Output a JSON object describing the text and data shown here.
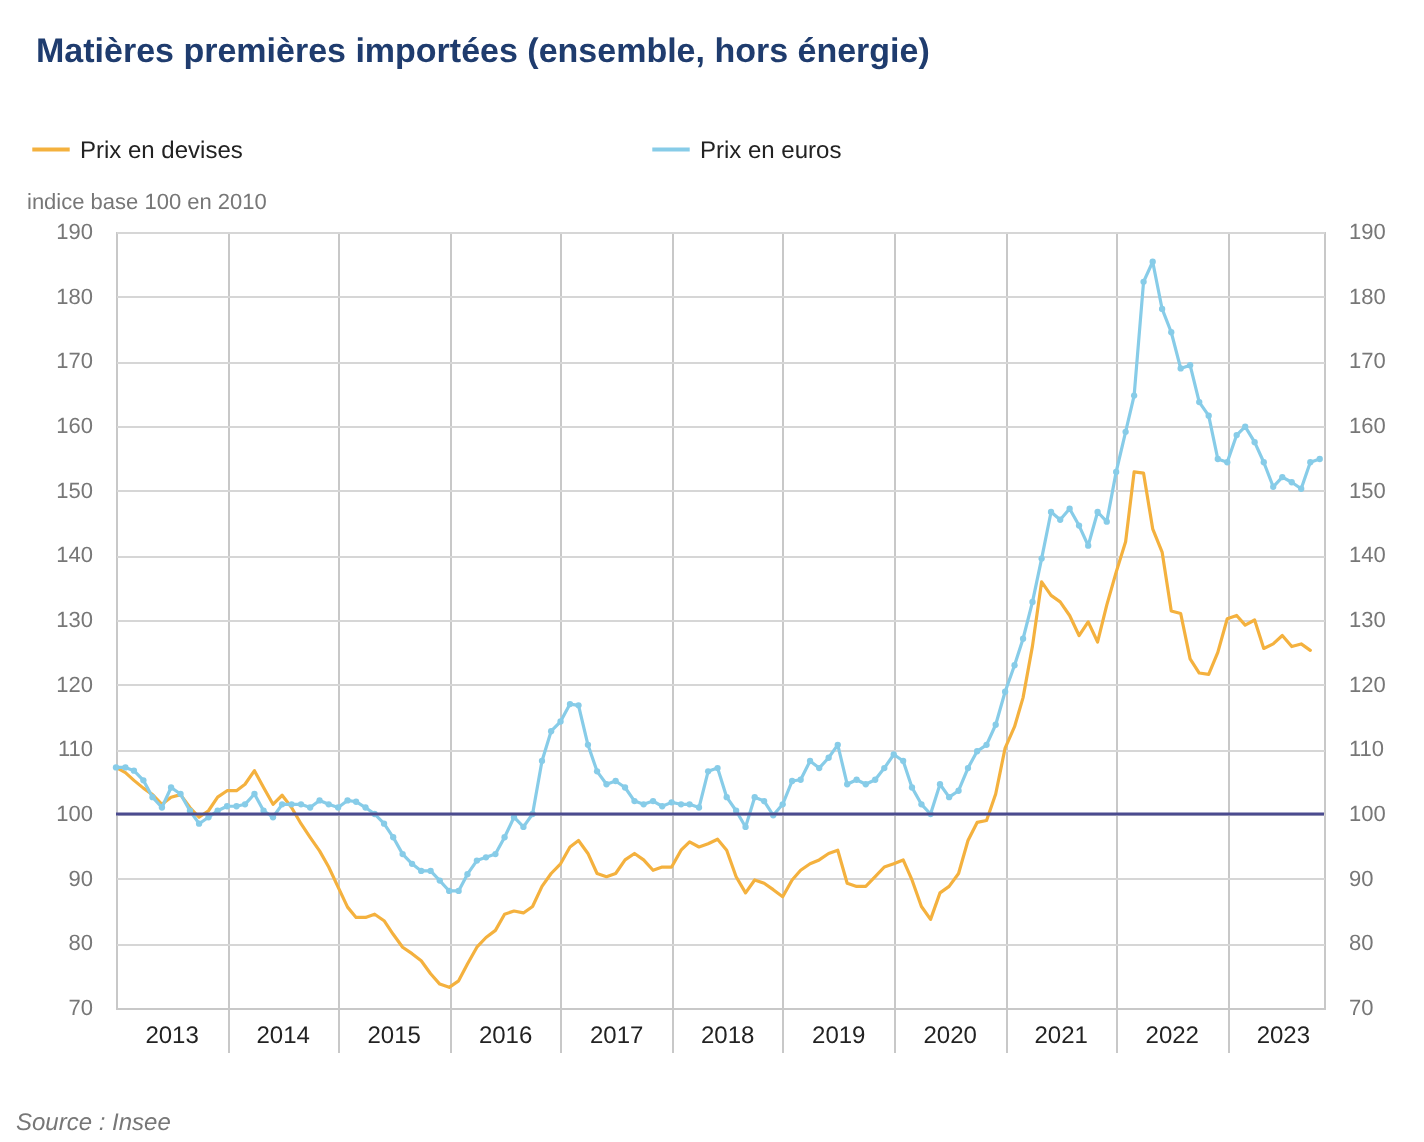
{
  "chart_data": {
    "type": "line",
    "title": "Matières premières importées (ensemble, hors énergie)",
    "ylabel": "indice base 100 en 2010",
    "annotations": [
      "Source : Insee"
    ],
    "x": [
      "2013-01",
      "2013-02",
      "2013-03",
      "2013-04",
      "2013-05",
      "2013-06",
      "2013-07",
      "2013-08",
      "2013-09",
      "2013-10",
      "2013-11",
      "2013-12",
      "2014-01",
      "2014-02",
      "2014-03",
      "2014-04",
      "2014-05",
      "2014-06",
      "2014-07",
      "2014-08",
      "2014-09",
      "2014-10",
      "2014-11",
      "2014-12",
      "2015-01",
      "2015-02",
      "2015-03",
      "2015-04",
      "2015-05",
      "2015-06",
      "2015-07",
      "2015-08",
      "2015-09",
      "2015-10",
      "2015-11",
      "2015-12",
      "2016-01",
      "2016-02",
      "2016-03",
      "2016-04",
      "2016-05",
      "2016-06",
      "2016-07",
      "2016-08",
      "2016-09",
      "2016-10",
      "2016-11",
      "2016-12",
      "2017-01",
      "2017-02",
      "2017-03",
      "2017-04",
      "2017-05",
      "2017-06",
      "2017-07",
      "2017-08",
      "2017-09",
      "2017-10",
      "2017-11",
      "2017-12",
      "2018-01",
      "2018-02",
      "2018-03",
      "2018-04",
      "2018-05",
      "2018-06",
      "2018-07",
      "2018-08",
      "2018-09",
      "2018-10",
      "2018-11",
      "2018-12",
      "2019-01",
      "2019-02",
      "2019-03",
      "2019-04",
      "2019-05",
      "2019-06",
      "2019-07",
      "2019-08",
      "2019-09",
      "2019-10",
      "2019-11",
      "2019-12",
      "2020-01",
      "2020-02",
      "2020-03",
      "2020-04",
      "2020-05",
      "2020-06",
      "2020-07",
      "2020-08",
      "2020-09",
      "2020-10",
      "2020-11",
      "2020-12",
      "2021-01",
      "2021-02",
      "2021-03",
      "2021-04",
      "2021-05",
      "2021-06",
      "2021-07",
      "2021-08",
      "2021-09",
      "2021-10",
      "2021-11",
      "2021-12",
      "2022-01",
      "2022-02",
      "2022-03",
      "2022-04",
      "2022-05",
      "2022-06",
      "2022-07",
      "2022-08",
      "2022-09",
      "2022-10",
      "2022-11",
      "2022-12",
      "2023-01",
      "2023-02",
      "2023-03",
      "2023-04",
      "2023-05",
      "2023-06",
      "2023-07",
      "2023-08",
      "2023-09",
      "2023-10",
      "2023-11"
    ],
    "series": [
      {
        "name": "Prix en devises",
        "color": "#f4b13e",
        "values": [
          107.2,
          106.4,
          105.2,
          104,
          103,
          101.5,
          102.6,
          103,
          101,
          99.5,
          100.5,
          102.6,
          103.6,
          103.6,
          104.6,
          106.7,
          104.1,
          101.5,
          102.9,
          101,
          98.5,
          96.4,
          94.3,
          91.8,
          88.7,
          85.6,
          84,
          84,
          84.5,
          83.5,
          81.4,
          79.4,
          78.4,
          77.3,
          75.3,
          73.7,
          73.2,
          74.2,
          76.8,
          79.4,
          80.9,
          82,
          84.5,
          85,
          84.7,
          85.7,
          88.8,
          90.8,
          92.3,
          94.9,
          95.9,
          93.9,
          90.8,
          90.3,
          90.8,
          92.9,
          93.9,
          92.9,
          91.3,
          91.8,
          91.8,
          94.4,
          95.7,
          94.9,
          95.4,
          96.1,
          94.4,
          90.3,
          87.8,
          89.8,
          89.3,
          88.3,
          87.2,
          89.8,
          91.3,
          92.3,
          92.9,
          93.9,
          94.4,
          89.3,
          88.8,
          88.8,
          90.3,
          91.8,
          92.3,
          92.9,
          89.8,
          85.7,
          83.7,
          87.8,
          88.8,
          90.8,
          95.9,
          98.7,
          99,
          103.1,
          110.2,
          113.5,
          118,
          126,
          135.9,
          133.8,
          132.8,
          130.7,
          127.6,
          129.7,
          126.6,
          132.3,
          137.4,
          142.1,
          152.9,
          152.7,
          144.1,
          140.5,
          131.4,
          131,
          124,
          121.8,
          121.6,
          125,
          130.2,
          130.7,
          129.2,
          130,
          125.6,
          126.3,
          127.6,
          125.9,
          126.3,
          125.3,
          null
        ]
      },
      {
        "name": "Prix en euros",
        "color": "#87cce8",
        "marker": "circle",
        "values": [
          107.2,
          107.2,
          106.7,
          105.2,
          102.6,
          101,
          104.1,
          103.1,
          100.5,
          98.5,
          99.5,
          100.5,
          101.2,
          101.2,
          101.5,
          103.1,
          100.5,
          99.5,
          101.5,
          101.5,
          101.5,
          101,
          102.1,
          101.5,
          101,
          102.1,
          101.9,
          101,
          100,
          98.5,
          96.4,
          93.8,
          92.3,
          91.2,
          91.2,
          89.7,
          88.1,
          88.1,
          90.7,
          92.8,
          93.3,
          93.8,
          96.4,
          99.5,
          98,
          100,
          108.2,
          112.8,
          114.3,
          117,
          116.8,
          110.7,
          106.6,
          104.6,
          105.1,
          104.1,
          102,
          101.5,
          102,
          101.2,
          101.8,
          101.5,
          101.5,
          101,
          106.6,
          107.1,
          102.6,
          100.5,
          98,
          102.6,
          102,
          99.8,
          101.5,
          105.1,
          105.3,
          108.2,
          107.1,
          108.7,
          110.7,
          104.6,
          105.3,
          104.6,
          105.3,
          107.1,
          109.2,
          108.2,
          104.1,
          101.5,
          100,
          104.6,
          102.6,
          103.6,
          107.1,
          109.7,
          110.7,
          113.8,
          118.9,
          123,
          127.1,
          132.8,
          139.5,
          146.7,
          145.5,
          147.2,
          144.6,
          141.5,
          146.7,
          145.2,
          152.9,
          159.1,
          164.7,
          182.3,
          185.4,
          178.1,
          174.5,
          168.9,
          169.4,
          163.7,
          161.6,
          154.9,
          154.4,
          158.6,
          159.9,
          157.5,
          154.4,
          150.6,
          152.1,
          151.3,
          150.3,
          154.4,
          154.9
        ]
      }
    ],
    "xlim": [
      "2013-01",
      "2023-11-15"
    ],
    "xticks": [
      {
        "value": "2013-07",
        "label": "2013"
      },
      {
        "value": "2014-01",
        "label": null
      },
      {
        "value": "2014-07",
        "label": "2014"
      },
      {
        "value": "2015-01",
        "label": null
      },
      {
        "value": "2015-07",
        "label": "2015"
      },
      {
        "value": "2016-01",
        "label": null
      },
      {
        "value": "2016-07",
        "label": "2016"
      },
      {
        "value": "2017-01",
        "label": null
      },
      {
        "value": "2017-07",
        "label": "2017"
      },
      {
        "value": "2018-01",
        "label": null
      },
      {
        "value": "2018-07",
        "label": "2018"
      },
      {
        "value": "2019-01",
        "label": null
      },
      {
        "value": "2019-07",
        "label": "2019"
      },
      {
        "value": "2020-01",
        "label": null
      },
      {
        "value": "2020-07",
        "label": "2020"
      },
      {
        "value": "2021-01",
        "label": null
      },
      {
        "value": "2021-07",
        "label": "2021"
      },
      {
        "value": "2022-01",
        "label": null
      },
      {
        "value": "2022-07",
        "label": "2022"
      },
      {
        "value": "2023-01",
        "label": null
      },
      {
        "value": "2023-07",
        "label": "2023"
      }
    ],
    "ylim": [
      70,
      190
    ],
    "yticks": [
      70,
      80,
      90,
      100,
      110,
      120,
      130,
      140,
      150,
      160,
      170,
      180,
      190
    ],
    "y2lim": [
      70,
      190
    ],
    "y2ticks": [
      70,
      80,
      90,
      100,
      110,
      120,
      130,
      140,
      150,
      160,
      170,
      180,
      190
    ],
    "ref_lines": [
      {
        "axis": "y",
        "value": 100,
        "color": "#4b4b8f"
      }
    ],
    "grid": true,
    "legend": "top",
    "line_style": "solid"
  }
}
